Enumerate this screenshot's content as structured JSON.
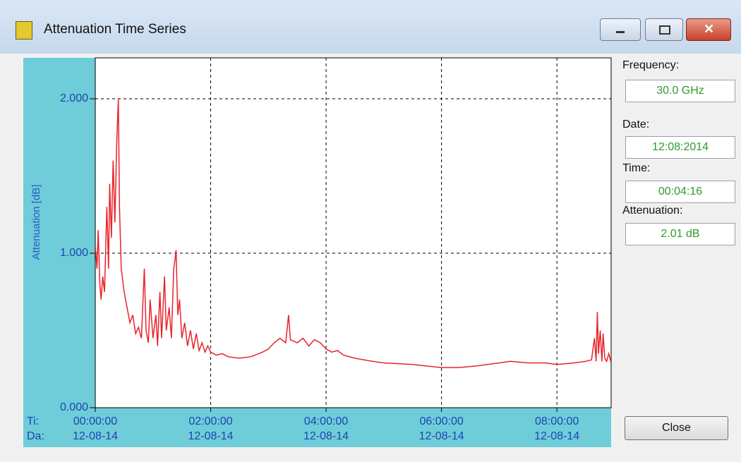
{
  "window": {
    "title": "Attenuation Time Series"
  },
  "chart_data": {
    "type": "line",
    "y_label": "Attenuation [dB]",
    "ylim": [
      0,
      2.265
    ],
    "yticks": [
      {
        "value": 0,
        "label": "0.000"
      },
      {
        "value": 1,
        "label": "1.000"
      },
      {
        "value": 2,
        "label": "2.000"
      }
    ],
    "xlim": [
      0,
      8.94
    ],
    "xticks": [
      {
        "value": 0,
        "label": "00:00:00"
      },
      {
        "value": 2,
        "label": "02:00:00"
      },
      {
        "value": 4,
        "label": "04:00:00"
      },
      {
        "value": 6,
        "label": "06:00:00"
      },
      {
        "value": 8,
        "label": "08:00:00"
      }
    ],
    "xtick_dates": [
      "12-08-14",
      "12-08-14",
      "12-08-14",
      "12-08-14",
      "12-08-14"
    ],
    "x_row_labels": [
      "Ti:",
      "Da:"
    ],
    "grid": true,
    "color": "#e8232a",
    "x": [
      0.0,
      0.03,
      0.05,
      0.08,
      0.1,
      0.13,
      0.16,
      0.2,
      0.23,
      0.25,
      0.28,
      0.31,
      0.34,
      0.37,
      0.4,
      0.42,
      0.45,
      0.5,
      0.55,
      0.6,
      0.65,
      0.7,
      0.75,
      0.8,
      0.85,
      0.88,
      0.92,
      0.95,
      1.0,
      1.05,
      1.08,
      1.12,
      1.15,
      1.2,
      1.23,
      1.28,
      1.32,
      1.36,
      1.38,
      1.4,
      1.43,
      1.46,
      1.5,
      1.55,
      1.6,
      1.65,
      1.7,
      1.75,
      1.8,
      1.85,
      1.9,
      1.95,
      2.0,
      2.1,
      2.2,
      2.3,
      2.5,
      2.7,
      2.9,
      3.0,
      3.1,
      3.2,
      3.3,
      3.35,
      3.38,
      3.5,
      3.6,
      3.7,
      3.8,
      3.9,
      4.0,
      4.1,
      4.2,
      4.3,
      4.5,
      4.8,
      5.0,
      5.5,
      6.0,
      6.3,
      6.6,
      7.0,
      7.2,
      7.5,
      7.8,
      8.0,
      8.3,
      8.5,
      8.6,
      8.65,
      8.68,
      8.7,
      8.72,
      8.75,
      8.78,
      8.8,
      8.83,
      8.86,
      8.9,
      8.94
    ],
    "values": [
      1.05,
      0.9,
      1.15,
      0.8,
      0.7,
      0.85,
      0.75,
      1.3,
      0.9,
      1.45,
      1.1,
      1.6,
      1.2,
      1.7,
      2.0,
      1.3,
      0.9,
      0.75,
      0.65,
      0.55,
      0.6,
      0.48,
      0.52,
      0.45,
      0.9,
      0.5,
      0.42,
      0.7,
      0.45,
      0.6,
      0.4,
      0.75,
      0.45,
      0.85,
      0.5,
      0.65,
      0.45,
      0.9,
      0.95,
      1.02,
      0.6,
      0.7,
      0.45,
      0.55,
      0.4,
      0.5,
      0.38,
      0.48,
      0.37,
      0.42,
      0.36,
      0.4,
      0.36,
      0.34,
      0.35,
      0.33,
      0.32,
      0.33,
      0.36,
      0.38,
      0.42,
      0.45,
      0.42,
      0.6,
      0.44,
      0.42,
      0.45,
      0.4,
      0.44,
      0.42,
      0.38,
      0.36,
      0.37,
      0.34,
      0.32,
      0.3,
      0.29,
      0.28,
      0.26,
      0.26,
      0.27,
      0.29,
      0.3,
      0.29,
      0.29,
      0.28,
      0.29,
      0.3,
      0.31,
      0.45,
      0.3,
      0.62,
      0.35,
      0.5,
      0.3,
      0.48,
      0.32,
      0.3,
      0.35,
      0.29
    ]
  },
  "panel": {
    "fields": [
      {
        "label": "Frequency:",
        "value": "30.0 GHz"
      },
      {
        "label": "Date:",
        "value": "12:08:2014"
      },
      {
        "label": "Time:",
        "value": "00:04:16"
      },
      {
        "label": "Attenuation:",
        "value": "2.01 dB"
      }
    ],
    "button": "Close"
  }
}
